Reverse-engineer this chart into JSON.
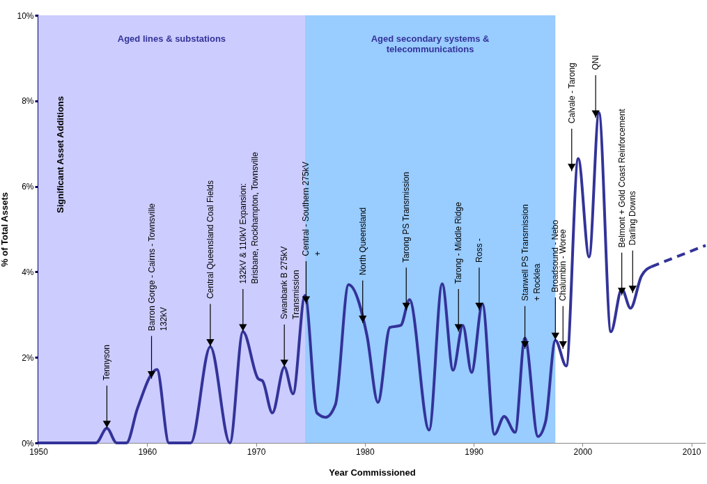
{
  "chart_data": {
    "type": "line",
    "xlabel": "Year Commissioned",
    "ylabel": "% of Total Assets",
    "xlim": [
      1950,
      2011.3
    ],
    "xticks": [
      1950,
      1960,
      1970,
      1980,
      1990,
      2000,
      2010
    ],
    "ylim": [
      0,
      10
    ],
    "yticks": [
      {
        "value": 0,
        "label": "0%"
      },
      {
        "value": 2,
        "label": "2%"
      },
      {
        "value": 4,
        "label": "4%"
      },
      {
        "value": 6,
        "label": "6%"
      },
      {
        "value": 8,
        "label": "8%"
      },
      {
        "value": 10,
        "label": "10%"
      }
    ],
    "grid": false,
    "marker": "none",
    "series": [
      {
        "color": "#333399",
        "line_style": "solid",
        "x": [
          1950,
          1955.3,
          1956.3,
          1957.2,
          1958.1,
          1959.1,
          1960.9,
          1962,
          1964,
          1965.8,
          1967.6,
          1968.8,
          1970.2,
          1970.6,
          1971.5,
          1972.6,
          1973.4,
          1974.5,
          1975.6,
          1976.4,
          1977.3,
          1978.5,
          1980.2,
          1981.2,
          1982.3,
          1983.3,
          1984.1,
          1985.9,
          1987.1,
          1988.1,
          1989,
          1989.8,
          1990.8,
          1991.9,
          1992.8,
          1993.8,
          1994.7,
          1995.9,
          1996.6,
          1997.5,
          1998.5,
          1999.6,
          2000.6,
          2001.5,
          2002.6,
          2003.6,
          2004.4,
          2005.4,
          2006.3
        ],
        "values": [
          0,
          0,
          0.34,
          0,
          0,
          0.8,
          1.72,
          0,
          0,
          2.25,
          0,
          2.6,
          1.5,
          1.45,
          0.7,
          1.77,
          1.15,
          3.45,
          0.7,
          0.6,
          0.9,
          3.7,
          2.5,
          0.95,
          2.7,
          2.75,
          3.35,
          0.3,
          3.72,
          1.7,
          2.75,
          1.65,
          3.25,
          0.2,
          0.62,
          0.25,
          2.45,
          0.15,
          0.5,
          2.4,
          1.8,
          6.65,
          4.35,
          7.72,
          2.6,
          3.6,
          3.15,
          3.9,
          4.12
        ]
      },
      {
        "color": "#333399",
        "line_style": "dashed",
        "x": [
          2006.3,
          2011.3
        ],
        "values": [
          4.12,
          4.62
        ]
      }
    ],
    "bands": [
      {
        "axis": "x",
        "from": 1950,
        "to": 1974.5,
        "label": "Aged lines & substations",
        "color": "#ccccff"
      },
      {
        "axis": "x",
        "from": 1974.5,
        "to": 1997.5,
        "label": "Aged secondary systems &\ntelecommunications",
        "color": "#99ccff"
      }
    ],
    "annotations": [
      "Significant Asset Additions",
      {
        "text": "Tennyson",
        "x": 1956.3,
        "y": 0.34
      },
      {
        "text": "Barron Gorge - Cairns - Townsville\n132kV",
        "x": 1960.4,
        "y": 1.5
      },
      {
        "text": "Central Queensland Coal Fields",
        "x": 1965.8,
        "y": 2.25
      },
      {
        "text": "132kV & 110kV Expansion:\nBrisbane, Rockhampton, Townsville",
        "x": 1968.8,
        "y": 2.6
      },
      {
        "text": "Swanbank B 275kV\nTransmission",
        "x": 1972.6,
        "y": 1.77
      },
      {
        "text": "Central - Southern 275kV\n+",
        "x": 1974.6,
        "y": 3.25
      },
      {
        "text": "North Queensland",
        "x": 1979.8,
        "y": 2.8
      },
      {
        "text": "Tarong PS Transmission",
        "x": 1983.8,
        "y": 3.1
      },
      {
        "text": "Tarong - Middle Ridge",
        "x": 1988.6,
        "y": 2.6
      },
      {
        "text": "Ross -",
        "x": 1990.5,
        "y": 3.1
      },
      {
        "text": "Stanwell PS Transmission\n+ Rocklea",
        "x": 1994.7,
        "y": 2.2
      },
      {
        "text": "Broadsound - Nebo",
        "x": 1997.5,
        "y": 2.4
      },
      {
        "text": "Chalumbin - Woree",
        "x": 1998.2,
        "y": 2.2
      },
      {
        "text": "Calvale - Tarong",
        "x": 1999,
        "y": 6.35
      },
      {
        "text": "QNI",
        "x": 2001.2,
        "y": 7.6
      },
      {
        "text": "Belmont + Gold Coast Reinforcement",
        "x": 2003.6,
        "y": 3.45
      },
      {
        "text": "Darling Downs",
        "x": 2004.6,
        "y": 3.5
      }
    ]
  }
}
